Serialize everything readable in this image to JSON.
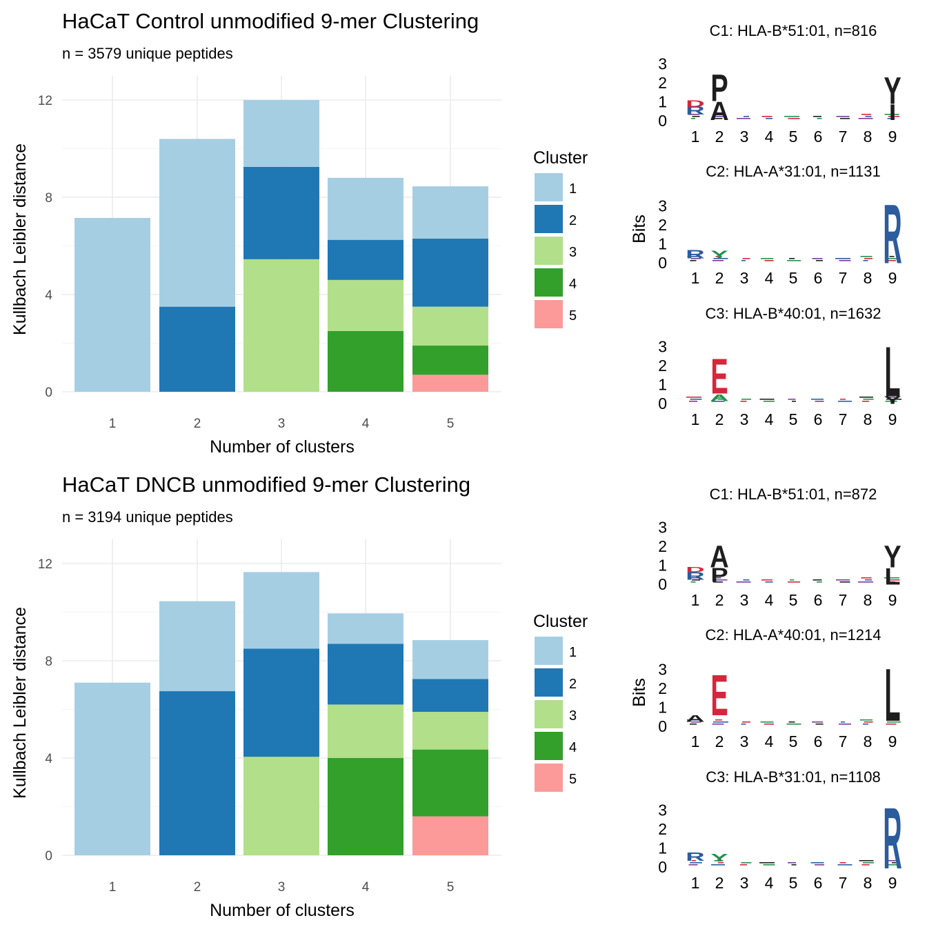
{
  "colors": {
    "cluster": [
      "#A6CEE3",
      "#1F78B4",
      "#B2DF8A",
      "#33A02C",
      "#FB9A99"
    ],
    "residue": {
      "acidic": "#D6263C",
      "basic": "#2B5C9E",
      "polar": "#21914B",
      "hydrophobic": "#1E1E1E",
      "neutral": "#7A3A96"
    }
  },
  "panels": [
    {
      "title": "HaCaT Control unmodified 9-mer Clustering",
      "subtitle": "n = 3579 unique peptides",
      "chart_data": {
        "type": "bar",
        "stacked": true,
        "categories": [
          "1",
          "2",
          "3",
          "4",
          "5"
        ],
        "xlabel": "Number of clusters",
        "ylabel": "Kullbach Leibler distance",
        "ylim": [
          0,
          13
        ],
        "yticks": [
          0,
          4,
          8,
          12
        ],
        "legend_title": "Cluster",
        "legend_placement": "right",
        "legend_entries": [
          "1",
          "2",
          "3",
          "4",
          "5"
        ],
        "stacks": [
          [
            {
              "cluster": "1",
              "from": 0,
              "to": 7.15
            }
          ],
          [
            {
              "cluster": "2",
              "from": 0,
              "to": 3.5
            },
            {
              "cluster": "1",
              "from": 3.5,
              "to": 10.4
            }
          ],
          [
            {
              "cluster": "3",
              "from": 0,
              "to": 5.45
            },
            {
              "cluster": "2",
              "from": 5.45,
              "to": 9.25
            },
            {
              "cluster": "1",
              "from": 9.25,
              "to": 12.0
            }
          ],
          [
            {
              "cluster": "4",
              "from": 0,
              "to": 2.5
            },
            {
              "cluster": "3",
              "from": 2.5,
              "to": 4.6
            },
            {
              "cluster": "2",
              "from": 4.6,
              "to": 6.25
            },
            {
              "cluster": "1",
              "from": 6.25,
              "to": 8.8
            }
          ],
          [
            {
              "cluster": "5",
              "from": 0,
              "to": 0.7
            },
            {
              "cluster": "4",
              "from": 0.7,
              "to": 1.9
            },
            {
              "cluster": "3",
              "from": 1.9,
              "to": 3.5
            },
            {
              "cluster": "2",
              "from": 3.5,
              "to": 6.3
            },
            {
              "cluster": "1",
              "from": 6.3,
              "to": 8.45
            }
          ]
        ]
      },
      "logos": [
        {
          "title": "C1: HLA-B*51:01, n=816",
          "ylabel": "",
          "yticks": [
            "0",
            "1",
            "2",
            "3"
          ],
          "positions": [
            "1",
            "2",
            "3",
            "4",
            "5",
            "6",
            "7",
            "8",
            "9"
          ],
          "letters": [
            {
              "pos": 1,
              "char": "R",
              "bits": 0.45,
              "base": 0.55,
              "cls": "basic"
            },
            {
              "pos": 1,
              "char": "D",
              "bits": 0.35,
              "base": 0.95,
              "cls": "acidic"
            },
            {
              "pos": 2,
              "char": "A",
              "bits": 1.0,
              "base": 0.25,
              "cls": "hydrophobic"
            },
            {
              "pos": 2,
              "char": "P",
              "bits": 1.45,
              "base": 1.25,
              "cls": "hydrophobic"
            },
            {
              "pos": 9,
              "char": "I",
              "bits": 0.85,
              "base": 0.25,
              "cls": "hydrophobic"
            },
            {
              "pos": 9,
              "char": "Y",
              "bits": 1.45,
              "base": 1.1,
              "cls": "hydrophobic"
            }
          ]
        },
        {
          "title": "C2: HLA-A*31:01, n=1131",
          "ylabel": "Bits",
          "yticks": [
            "0",
            "1",
            "2",
            "3"
          ],
          "positions": [
            "1",
            "2",
            "3",
            "4",
            "5",
            "6",
            "7",
            "8",
            "9"
          ],
          "letters": [
            {
              "pos": 1,
              "char": "R",
              "bits": 0.45,
              "base": 0.45,
              "cls": "basic"
            },
            {
              "pos": 2,
              "char": "Y",
              "bits": 0.4,
              "base": 0.45,
              "cls": "polar"
            },
            {
              "pos": 9,
              "char": "R",
              "bits": 3.2,
              "base": 0.2,
              "cls": "basic"
            }
          ]
        },
        {
          "title": "C3: HLA-B*40:01, n=1632",
          "ylabel": "",
          "yticks": [
            "0",
            "1",
            "2",
            "3"
          ],
          "positions": [
            "1",
            "2",
            "3",
            "4",
            "5",
            "6",
            "7",
            "8",
            "9"
          ],
          "letters": [
            {
              "pos": 2,
              "char": "A",
              "bits": 0.35,
              "base": 0.35,
              "cls": "polar"
            },
            {
              "pos": 2,
              "char": "E",
              "bits": 1.9,
              "base": 0.75,
              "cls": "acidic"
            },
            {
              "pos": 9,
              "char": "Y",
              "bits": 0.4,
              "base": 0.2,
              "cls": "hydrophobic"
            },
            {
              "pos": 9,
              "char": "L",
              "bits": 2.7,
              "base": 0.6,
              "cls": "hydrophobic"
            }
          ]
        }
      ]
    },
    {
      "title": "HaCaT DNCB unmodified 9-mer Clustering",
      "subtitle": "n = 3194 unique peptides",
      "chart_data": {
        "type": "bar",
        "stacked": true,
        "categories": [
          "1",
          "2",
          "3",
          "4",
          "5"
        ],
        "xlabel": "Number of clusters",
        "ylabel": "Kullbach Leibler distance",
        "ylim": [
          0,
          13
        ],
        "yticks": [
          0,
          4,
          8,
          12
        ],
        "legend_title": "Cluster",
        "legend_placement": "right",
        "legend_entries": [
          "1",
          "2",
          "3",
          "4",
          "5"
        ],
        "stacks": [
          [
            {
              "cluster": "1",
              "from": 0,
              "to": 7.1
            }
          ],
          [
            {
              "cluster": "2",
              "from": 0,
              "to": 6.75
            },
            {
              "cluster": "1",
              "from": 6.75,
              "to": 10.45
            }
          ],
          [
            {
              "cluster": "3",
              "from": 0,
              "to": 4.05
            },
            {
              "cluster": "2",
              "from": 4.05,
              "to": 8.5
            },
            {
              "cluster": "1",
              "from": 8.5,
              "to": 11.65
            }
          ],
          [
            {
              "cluster": "4",
              "from": 0,
              "to": 4.0
            },
            {
              "cluster": "3",
              "from": 4.0,
              "to": 6.2
            },
            {
              "cluster": "2",
              "from": 6.2,
              "to": 8.7
            },
            {
              "cluster": "1",
              "from": 8.7,
              "to": 9.95
            }
          ],
          [
            {
              "cluster": "5",
              "from": 0,
              "to": 1.6
            },
            {
              "cluster": "4",
              "from": 1.6,
              "to": 4.35
            },
            {
              "cluster": "3",
              "from": 4.35,
              "to": 5.9
            },
            {
              "cluster": "2",
              "from": 5.9,
              "to": 7.25
            },
            {
              "cluster": "1",
              "from": 7.25,
              "to": 8.85
            }
          ]
        ]
      },
      "logos": [
        {
          "title": "C1: HLA-B*51:01, n=872",
          "ylabel": "",
          "yticks": [
            "0",
            "1",
            "2",
            "3"
          ],
          "positions": [
            "1",
            "2",
            "3",
            "4",
            "5",
            "6",
            "7",
            "8",
            "9"
          ],
          "letters": [
            {
              "pos": 1,
              "char": "R",
              "bits": 0.4,
              "base": 0.45,
              "cls": "basic"
            },
            {
              "pos": 1,
              "char": "D",
              "bits": 0.3,
              "base": 0.85,
              "cls": "acidic"
            },
            {
              "pos": 2,
              "char": "P",
              "bits": 0.75,
              "base": 0.35,
              "cls": "hydrophobic"
            },
            {
              "pos": 2,
              "char": "A",
              "bits": 1.2,
              "base": 1.1,
              "cls": "hydrophobic"
            },
            {
              "pos": 9,
              "char": "L",
              "bits": 0.9,
              "base": 0.2,
              "cls": "hydrophobic"
            },
            {
              "pos": 9,
              "char": "Y",
              "bits": 1.2,
              "base": 1.1,
              "cls": "hydrophobic"
            }
          ]
        },
        {
          "title": "C2: HLA-A*40:01, n=1214",
          "ylabel": "Bits",
          "yticks": [
            "0",
            "1",
            "2",
            "3"
          ],
          "positions": [
            "1",
            "2",
            "3",
            "4",
            "5",
            "6",
            "7",
            "8",
            "9"
          ],
          "letters": [
            {
              "pos": 1,
              "char": "A",
              "bits": 0.35,
              "base": 0.45,
              "cls": "hydrophobic"
            },
            {
              "pos": 2,
              "char": "E",
              "bits": 2.2,
              "base": 0.8,
              "cls": "acidic"
            },
            {
              "pos": 9,
              "char": "L",
              "bits": 2.85,
              "base": 0.5,
              "cls": "hydrophobic"
            }
          ]
        },
        {
          "title": "C3: HLA-B*31:01, n=1108",
          "ylabel": "",
          "yticks": [
            "0",
            "1",
            "2",
            "3"
          ],
          "positions": [
            "1",
            "2",
            "3",
            "4",
            "5",
            "6",
            "7",
            "8",
            "9"
          ],
          "letters": [
            {
              "pos": 1,
              "char": "R",
              "bits": 0.45,
              "base": 0.55,
              "cls": "basic"
            },
            {
              "pos": 2,
              "char": "Y",
              "bits": 0.4,
              "base": 0.5,
              "cls": "polar"
            },
            {
              "pos": 9,
              "char": "R",
              "bits": 3.3,
              "base": 0.15,
              "cls": "basic"
            }
          ]
        }
      ]
    }
  ]
}
